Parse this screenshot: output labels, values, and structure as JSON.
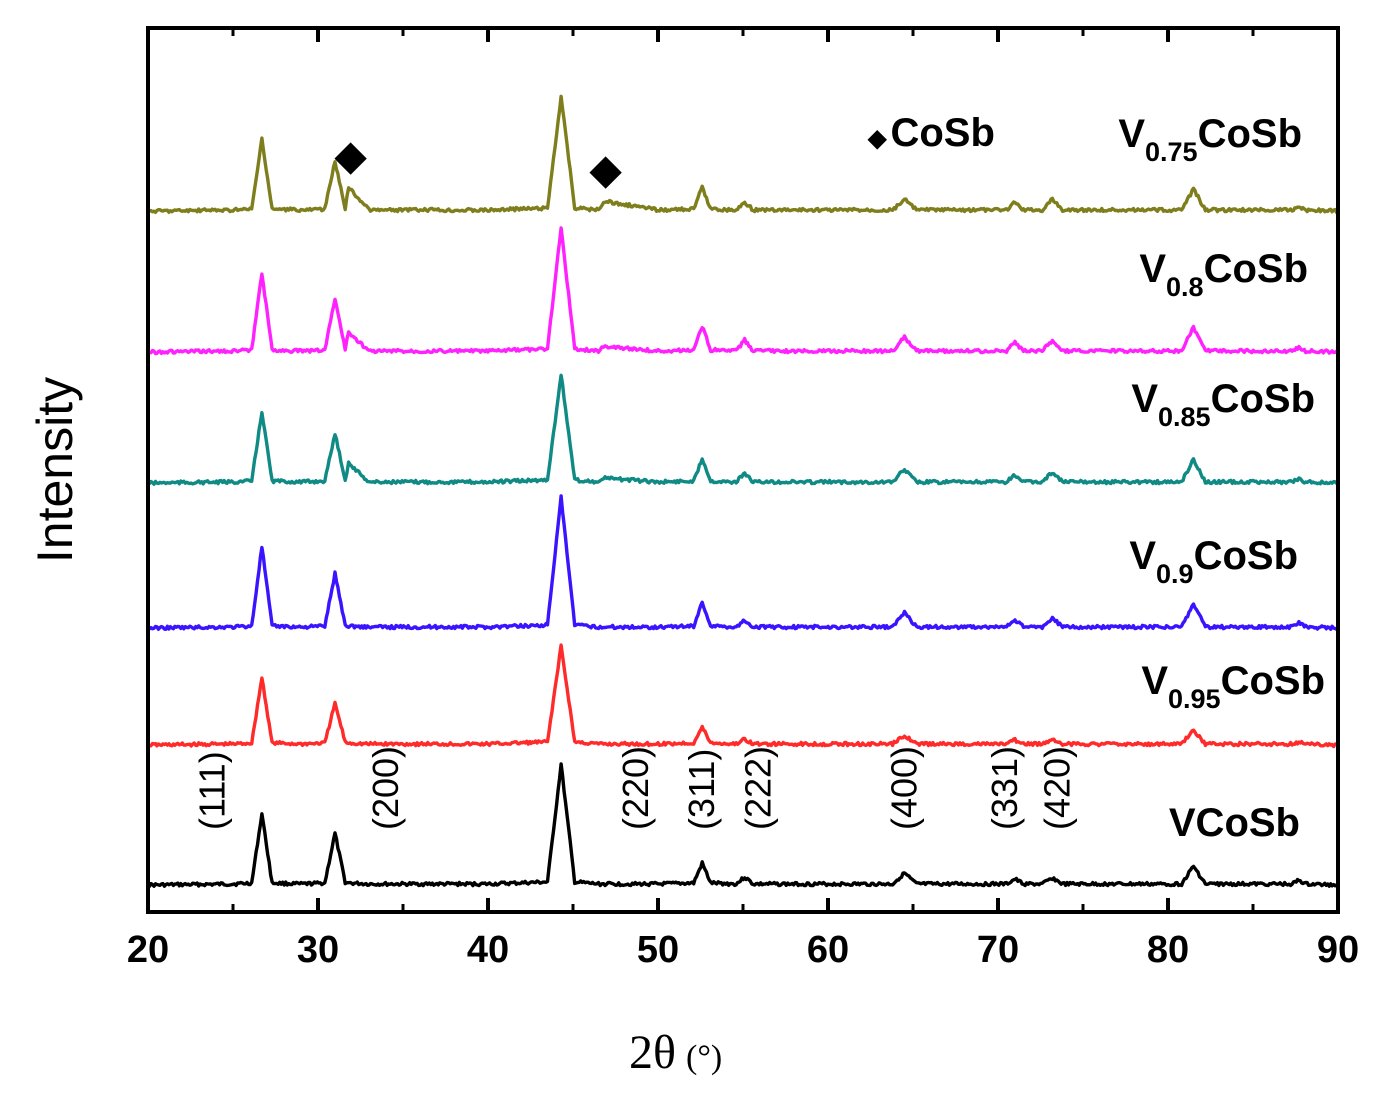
{
  "chart_data": {
    "type": "line",
    "title": "",
    "xlabel": "2θ",
    "xlabel_unit": "(°)",
    "ylabel": "Intensity",
    "xlim": [
      20,
      90
    ],
    "xticks": [
      20,
      30,
      40,
      50,
      60,
      70,
      80,
      90
    ],
    "xtick_labels": [
      "20",
      "30",
      "40",
      "50",
      "60",
      "70",
      "80",
      "90"
    ],
    "y_ticks_shown": false,
    "grid": false,
    "x": [
      20,
      25,
      26.1,
      26.7,
      27.3,
      29,
      30.4,
      31,
      31.6,
      31.8,
      33,
      40,
      43.5,
      44.3,
      45.1,
      46.5,
      46.8,
      50,
      52.1,
      52.6,
      53.1,
      54.6,
      55.1,
      55.6,
      63.8,
      64.5,
      65.2,
      70.5,
      71,
      71.5,
      72.6,
      73.2,
      73.8,
      80.8,
      81.5,
      82.2,
      87.3,
      87.7,
      88.1,
      90
    ],
    "series": [
      {
        "name": "VCoSb",
        "color": "#000000",
        "values": [
          0,
          1,
          2,
          72,
          2,
          1,
          2,
          52,
          3,
          2,
          1,
          1,
          3,
          122,
          3,
          1,
          1,
          1,
          2,
          22,
          2,
          1,
          8,
          1,
          1,
          12,
          1,
          1,
          6,
          1,
          1,
          7,
          1,
          1,
          19,
          1,
          1,
          5,
          1,
          0
        ]
      },
      {
        "name": "V0.95CoSb",
        "color": "#ff2a2a",
        "values": [
          0,
          1,
          2,
          68,
          2,
          1,
          2,
          42,
          3,
          2,
          1,
          1,
          3,
          100,
          3,
          1,
          1,
          1,
          2,
          18,
          2,
          1,
          6,
          1,
          1,
          10,
          1,
          1,
          5,
          1,
          1,
          6,
          1,
          1,
          15,
          1,
          1,
          3,
          1,
          0
        ]
      },
      {
        "name": "V0.9CoSb",
        "color": "#3a14ff",
        "values": [
          0,
          1,
          2,
          82,
          2,
          1,
          2,
          55,
          3,
          2,
          1,
          1,
          3,
          132,
          3,
          1,
          1,
          1,
          2,
          26,
          2,
          1,
          8,
          1,
          1,
          16,
          1,
          1,
          8,
          1,
          1,
          10,
          1,
          1,
          24,
          1,
          1,
          6,
          1,
          0
        ]
      },
      {
        "name": "V0.85CoSb",
        "color": "#108a84",
        "values": [
          0,
          1,
          2,
          72,
          2,
          1,
          2,
          50,
          3,
          20,
          1,
          1,
          3,
          110,
          3,
          1,
          5,
          1,
          2,
          25,
          2,
          1,
          10,
          1,
          1,
          14,
          1,
          1,
          8,
          1,
          1,
          11,
          1,
          1,
          24,
          1,
          1,
          4,
          1,
          0
        ]
      },
      {
        "name": "V0.8CoSb",
        "color": "#ff22ff",
        "values": [
          0,
          1,
          2,
          80,
          2,
          1,
          2,
          54,
          3,
          20,
          1,
          1,
          3,
          126,
          3,
          1,
          6,
          1,
          2,
          26,
          2,
          1,
          12,
          1,
          1,
          15,
          1,
          1,
          10,
          1,
          1,
          12,
          1,
          1,
          25,
          1,
          1,
          4,
          1,
          0
        ]
      },
      {
        "name": "V0.75CoSb",
        "color": "#7e7f1c",
        "values": [
          0,
          1,
          2,
          72,
          2,
          1,
          2,
          50,
          3,
          24,
          1,
          1,
          3,
          116,
          3,
          1,
          10,
          1,
          2,
          24,
          2,
          1,
          9,
          1,
          1,
          12,
          1,
          1,
          9,
          1,
          1,
          12,
          1,
          1,
          22,
          1,
          1,
          5,
          1,
          0
        ]
      }
    ],
    "series_labels": [
      {
        "series": "VCoSb",
        "base": "VCoSb",
        "sub": "",
        "suffix": ""
      },
      {
        "series": "V0.95CoSb",
        "base": "V",
        "sub": "0.95",
        "suffix": "CoSb"
      },
      {
        "series": "V0.9CoSb",
        "base": "V",
        "sub": "0.9",
        "suffix": "CoSb"
      },
      {
        "series": "V0.85CoSb",
        "base": "V",
        "sub": "0.85",
        "suffix": "CoSb"
      },
      {
        "series": "V0.8CoSb",
        "base": "V",
        "sub": "0.8",
        "suffix": "CoSb"
      },
      {
        "series": "V0.75CoSb",
        "base": "V",
        "sub": "0.75",
        "suffix": "CoSb"
      }
    ],
    "peak_annotations": [
      {
        "label": "(111)",
        "x": 23.8
      },
      {
        "label": "(200)",
        "x": 34.0
      },
      {
        "label": "(220)",
        "x": 48.7
      },
      {
        "label": "(311)",
        "x": 52.6
      },
      {
        "label": "(222)",
        "x": 55.9
      },
      {
        "label": "(400)",
        "x": 64.5
      },
      {
        "label": "(331)",
        "x": 70.4
      },
      {
        "label": "(420)",
        "x": 73.5
      }
    ],
    "impurity_markers": {
      "symbol": "◆",
      "label": "CoSb",
      "series": "V0.75CoSb",
      "x": [
        31.8,
        46.8
      ]
    }
  }
}
